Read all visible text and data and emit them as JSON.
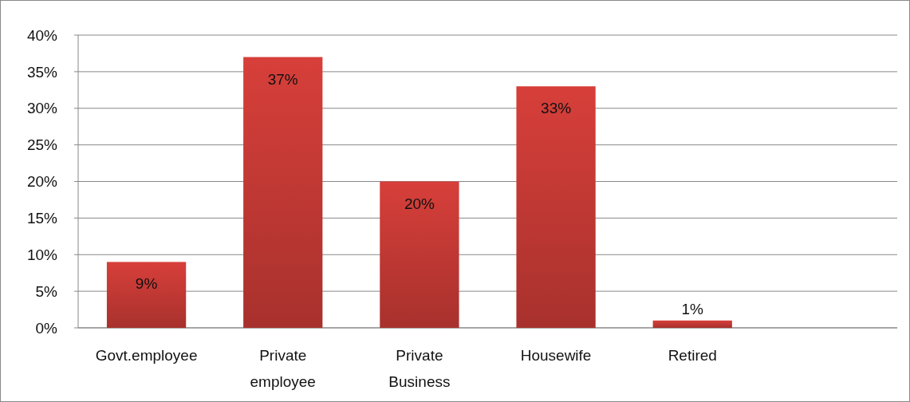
{
  "chart_data": {
    "type": "bar",
    "categories": [
      "Govt.employee",
      "Private employee",
      "Private Business",
      "Housewife",
      "Retired",
      null
    ],
    "values": [
      9,
      37,
      20,
      33,
      1,
      null
    ],
    "value_labels": [
      "9%",
      "37%",
      "20%",
      "33%",
      "1%",
      null
    ],
    "color": "#c53a35",
    "ylim": [
      0,
      40
    ],
    "yticks": [
      {
        "value": 0,
        "label": "0%"
      },
      {
        "value": 5,
        "label": "5%"
      },
      {
        "value": 10,
        "label": "10%"
      },
      {
        "value": 15,
        "label": "15%"
      },
      {
        "value": 20,
        "label": "20%"
      },
      {
        "value": 25,
        "label": "25%"
      },
      {
        "value": 30,
        "label": "30%"
      },
      {
        "value": 35,
        "label": "35%"
      },
      {
        "value": 40,
        "label": "40%"
      }
    ],
    "grid": "y"
  }
}
